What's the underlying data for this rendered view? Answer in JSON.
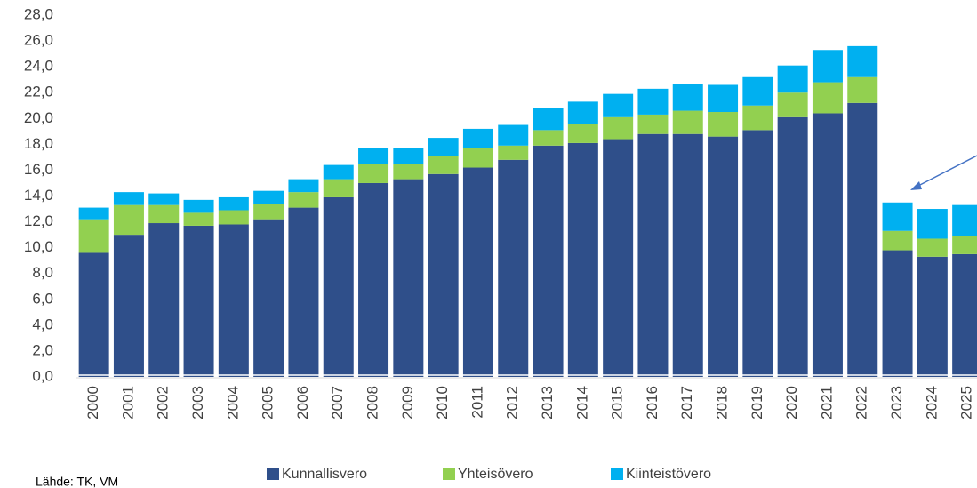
{
  "chart_data": {
    "type": "stacked_bar",
    "categories": [
      "2000",
      "2001",
      "2002",
      "2003",
      "2004",
      "2005",
      "2006",
      "2007",
      "2008",
      "2009",
      "2010",
      "2011",
      "2012",
      "2013",
      "2014",
      "2015",
      "2016",
      "2017",
      "2018",
      "2019",
      "2020",
      "2021",
      "2022",
      "2023",
      "2024",
      "2025"
    ],
    "series": [
      {
        "name": "Kunnallisvero",
        "color": "#2f4f8a",
        "values": [
          9.6,
          11.0,
          11.9,
          11.7,
          11.8,
          12.2,
          13.1,
          13.9,
          15.0,
          15.3,
          15.7,
          16.2,
          16.8,
          17.9,
          18.1,
          18.4,
          18.8,
          18.8,
          18.6,
          19.1,
          20.1,
          20.4,
          21.2,
          9.8,
          9.3,
          9.5
        ]
      },
      {
        "name": "Yhteisövero",
        "color": "#92d050",
        "values": [
          2.6,
          2.3,
          1.4,
          1.0,
          1.1,
          1.2,
          1.2,
          1.4,
          1.5,
          1.2,
          1.4,
          1.5,
          1.1,
          1.2,
          1.5,
          1.7,
          1.5,
          1.8,
          1.9,
          1.9,
          1.9,
          2.4,
          2.0,
          1.5,
          1.4,
          1.4
        ]
      },
      {
        "name": "Kiinteistövero",
        "color": "#00b0f0",
        "values": [
          0.9,
          1.0,
          0.9,
          1.0,
          1.0,
          1.0,
          1.0,
          1.1,
          1.2,
          1.2,
          1.4,
          1.5,
          1.6,
          1.7,
          1.7,
          1.8,
          2.0,
          2.1,
          2.1,
          2.2,
          2.1,
          2.5,
          2.4,
          2.2,
          2.3,
          2.4
        ]
      }
    ],
    "ylim": [
      0,
      28
    ],
    "yticks": [
      {
        "value": 0,
        "label": "0,0"
      },
      {
        "value": 2,
        "label": "2,0"
      },
      {
        "value": 4,
        "label": "4,0"
      },
      {
        "value": 6,
        "label": "6,0"
      },
      {
        "value": 8,
        "label": "8,0"
      },
      {
        "value": 10,
        "label": "10,0"
      },
      {
        "value": 12,
        "label": "12,0"
      },
      {
        "value": 14,
        "label": "14,0"
      },
      {
        "value": 16,
        "label": "16,0"
      },
      {
        "value": 18,
        "label": "18,0"
      },
      {
        "value": 20,
        "label": "20,0"
      },
      {
        "value": 22,
        "label": "22,0"
      },
      {
        "value": 24,
        "label": "24,0"
      },
      {
        "value": 26,
        "label": "26,0"
      },
      {
        "value": 28,
        "label": "28,0"
      }
    ],
    "legend": "bottom",
    "source": "Lähde: TK, VM"
  }
}
